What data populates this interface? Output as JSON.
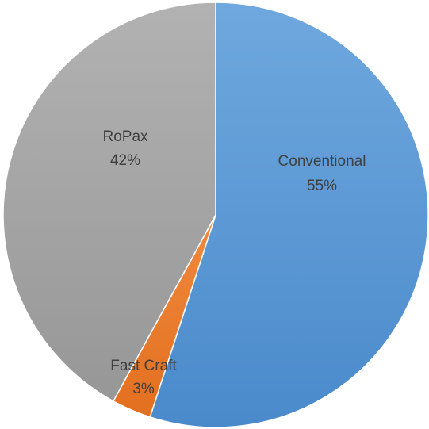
{
  "chart_data": {
    "type": "pie",
    "title": "",
    "start_angle_deg": 0,
    "direction": "clockwise",
    "slices": [
      {
        "label": "Conventional",
        "value": 55,
        "percent_label": "55%",
        "color": "#5B9BD5"
      },
      {
        "label": "Fast Craft",
        "value": 3,
        "percent_label": "3%",
        "color": "#ED7D31"
      },
      {
        "label": "RoPax",
        "value": 42,
        "percent_label": "42%",
        "color": "#A5A5A5"
      }
    ],
    "data_labels": "inside",
    "legend": "none"
  }
}
